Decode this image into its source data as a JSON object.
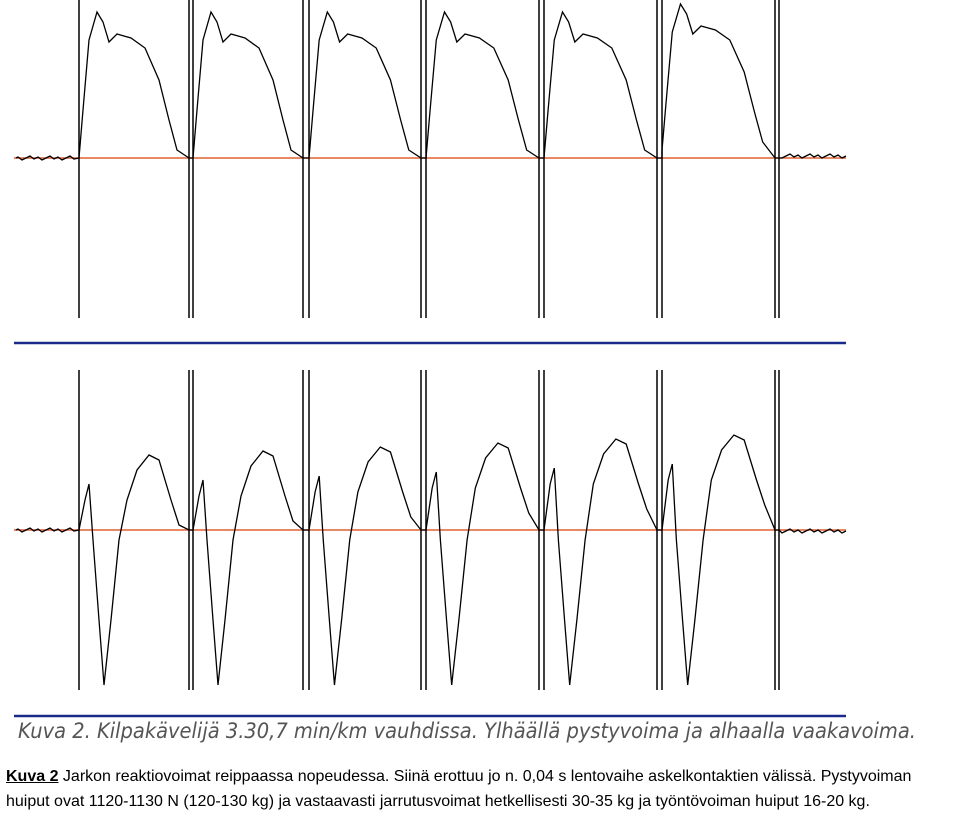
{
  "figure": {
    "caption_in_image": "Kuva 2. Kilpakävelijä 3.30,7 min/km vauhdissa. Ylhäällä pystyvoima ja alhaalla vaakavoima."
  },
  "caption": {
    "label": "Kuva 2",
    "text": "Jarkon reaktiovoimat reippaassa nopeudessa. Siinä erottuu jo n. 0,04 s lentovaihe askelkontaktien välissä. Pystyvoiman huiput ovat 1120-1130 N (120-130 kg) ja vastaavasti jarrutusvoimat hetkellisesti 30-35 kg ja työntövoiman huiput 16-20 kg."
  }
}
